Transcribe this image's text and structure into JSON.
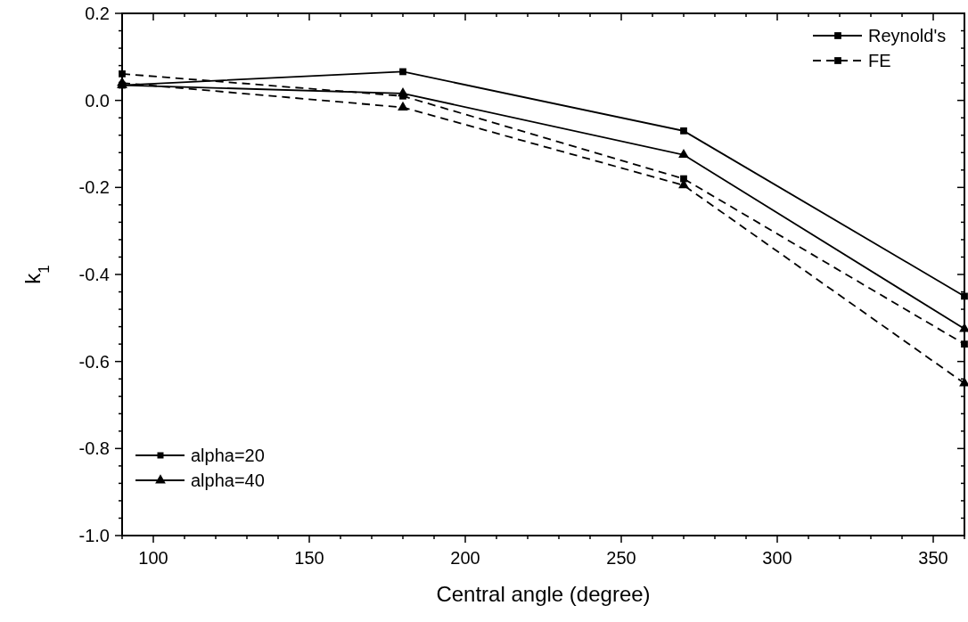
{
  "chart_data": {
    "type": "line",
    "xlabel": "Central angle (degree)",
    "ylabel": "k$_{1}$",
    "x": [
      90,
      180,
      270,
      360
    ],
    "series": [
      {
        "name": "Reynold's",
        "color": "#000000",
        "marker": "square",
        "line_style": "solid",
        "values": [
          0.035,
          0.066,
          -0.07,
          -0.45
        ]
      },
      {
        "name": "FE",
        "color": "#000000",
        "marker": "square",
        "line_style": "dashed",
        "values": [
          0.061,
          0.01,
          -0.18,
          -0.56
        ]
      },
      {
        "name": "alpha=40",
        "color": "#000000",
        "marker": "triangle",
        "line_style": "solid",
        "values": [
          0.035,
          0.016,
          -0.125,
          -0.525
        ]
      },
      {
        "color": "#000000",
        "marker": "triangle",
        "line_style": "dashed",
        "values": [
          0.04,
          -0.016,
          -0.195,
          -0.65
        ]
      }
    ],
    "annotations": [
      "alpha=20"
    ],
    "legend": "top right",
    "xlim": [
      90,
      360
    ],
    "xticks": [
      {
        "value": 90,
        "label": null
      },
      100,
      {
        "value": 110,
        "label": null
      },
      {
        "value": 120,
        "label": null
      },
      {
        "value": 130,
        "label": null
      },
      {
        "value": 140,
        "label": null
      },
      150,
      {
        "value": 160,
        "label": null
      },
      {
        "value": 170,
        "label": null
      },
      {
        "value": 180,
        "label": null
      },
      {
        "value": 190,
        "label": null
      },
      200,
      {
        "value": 210,
        "label": null
      },
      {
        "value": 220,
        "label": null
      },
      {
        "value": 230,
        "label": null
      },
      {
        "value": 240,
        "label": null
      },
      250,
      {
        "value": 260,
        "label": null
      },
      {
        "value": 270,
        "label": null
      },
      {
        "value": 280,
        "label": null
      },
      {
        "value": 290,
        "label": null
      },
      300,
      {
        "value": 310,
        "label": null
      },
      {
        "value": 320,
        "label": null
      },
      {
        "value": 330,
        "label": null
      },
      {
        "value": 340,
        "label": null
      },
      350,
      {
        "value": 360,
        "label": null
      }
    ],
    "ylim": [
      -1.0,
      0.2
    ],
    "yticks": [
      {
        "value": -1.0,
        "label": "-1.0"
      },
      {
        "value": -0.96,
        "label": null
      },
      {
        "value": -0.92,
        "label": null
      },
      {
        "value": -0.88,
        "label": null
      },
      {
        "value": -0.84,
        "label": null
      },
      {
        "value": -0.8,
        "label": "-0.8"
      },
      {
        "value": -0.76,
        "label": null
      },
      {
        "value": -0.72,
        "label": null
      },
      {
        "value": -0.68,
        "label": null
      },
      {
        "value": -0.64,
        "label": null
      },
      {
        "value": -0.6,
        "label": "-0.6"
      },
      {
        "value": -0.56,
        "label": null
      },
      {
        "value": -0.52,
        "label": null
      },
      {
        "value": -0.48,
        "label": null
      },
      {
        "value": -0.44,
        "label": null
      },
      {
        "value": -0.4,
        "label": "-0.4"
      },
      {
        "value": -0.36,
        "label": null
      },
      {
        "value": -0.32,
        "label": null
      },
      {
        "value": -0.28,
        "label": null
      },
      {
        "value": -0.24,
        "label": null
      },
      {
        "value": -0.2,
        "label": "-0.2"
      },
      {
        "value": -0.16,
        "label": null
      },
      {
        "value": -0.12,
        "label": null
      },
      {
        "value": -0.08,
        "label": null
      },
      {
        "value": -0.04,
        "label": null
      },
      {
        "value": 0,
        "label": "0.0"
      },
      {
        "value": 0.04,
        "label": null
      },
      {
        "value": 0.08,
        "label": null
      },
      {
        "value": 0.12,
        "label": null
      },
      {
        "value": 0.16,
        "label": null
      },
      {
        "value": 0.2,
        "label": "0.2"
      }
    ]
  }
}
